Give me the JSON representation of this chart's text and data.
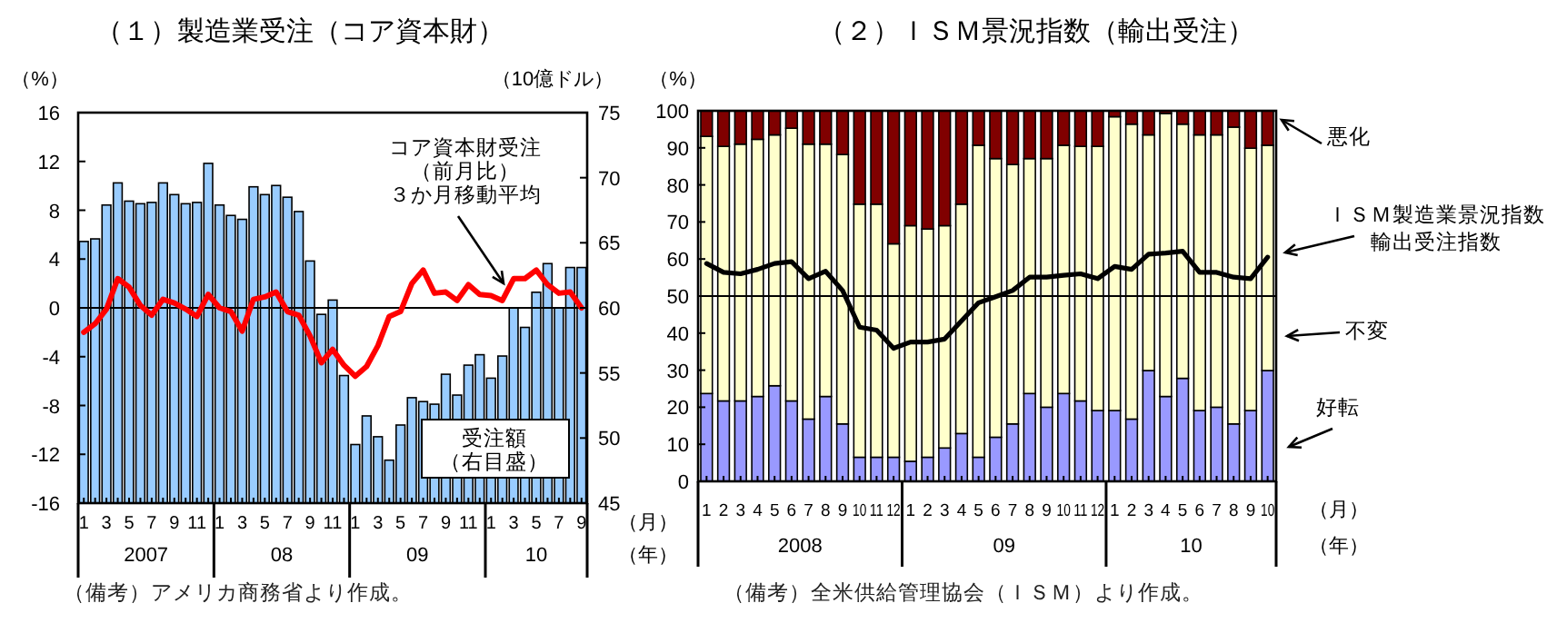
{
  "chart_data": [
    {
      "type": "bar",
      "title": "（１）製造業受注（コア資本財）",
      "ylabel": "（%）",
      "y2label": "（10億ドル）",
      "xlabel": "（月）（年）",
      "x": [
        "2007-01",
        "2007-02",
        "2007-03",
        "2007-04",
        "2007-05",
        "2007-06",
        "2007-07",
        "2007-08",
        "2007-09",
        "2007-10",
        "2007-11",
        "2007-12",
        "2008-01",
        "2008-02",
        "2008-03",
        "2008-04",
        "2008-05",
        "2008-06",
        "2008-07",
        "2008-08",
        "2008-09",
        "2008-10",
        "2008-11",
        "2008-12",
        "2009-01",
        "2009-02",
        "2009-03",
        "2009-04",
        "2009-05",
        "2009-06",
        "2009-07",
        "2009-08",
        "2009-09",
        "2009-10",
        "2009-11",
        "2009-12",
        "2010-01",
        "2010-02",
        "2010-03",
        "2010-04",
        "2010-05",
        "2010-06",
        "2010-07",
        "2010-08",
        "2010-09"
      ],
      "xlim": [
        "2006-12-16",
        "2010-09-16"
      ],
      "xticks": [
        {
          "value": "2007-01",
          "label": "1"
        },
        {
          "value": "2007-02",
          "label": null
        },
        {
          "value": "2007-03",
          "label": "3"
        },
        {
          "value": "2007-04",
          "label": null
        },
        {
          "value": "2007-05",
          "label": "5"
        },
        {
          "value": "2007-06",
          "label": null
        },
        {
          "value": "2007-07",
          "label": "7"
        },
        {
          "value": "2007-08",
          "label": null
        },
        {
          "value": "2007-09",
          "label": "9"
        },
        {
          "value": "2007-10",
          "label": null
        },
        {
          "value": "2007-11",
          "label": "11"
        },
        {
          "value": "2007-12",
          "label": null
        },
        {
          "value": "2008-01",
          "label": "1"
        },
        {
          "value": "2008-02",
          "label": null
        },
        {
          "value": "2008-03",
          "label": "3"
        },
        {
          "value": "2008-04",
          "label": null
        },
        {
          "value": "2008-05",
          "label": "5"
        },
        {
          "value": "2008-06",
          "label": null
        },
        {
          "value": "2008-07",
          "label": "7"
        },
        {
          "value": "2008-08",
          "label": null
        },
        {
          "value": "2008-09",
          "label": "9"
        },
        {
          "value": "2008-10",
          "label": null
        },
        {
          "value": "2008-11",
          "label": "11"
        },
        {
          "value": "2008-12",
          "label": null
        },
        {
          "value": "2009-01",
          "label": "1"
        },
        {
          "value": "2009-02",
          "label": null
        },
        {
          "value": "2009-03",
          "label": "3"
        },
        {
          "value": "2009-04",
          "label": null
        },
        {
          "value": "2009-05",
          "label": "5"
        },
        {
          "value": "2009-06",
          "label": null
        },
        {
          "value": "2009-07",
          "label": "7"
        },
        {
          "value": "2009-08",
          "label": null
        },
        {
          "value": "2009-09",
          "label": "9"
        },
        {
          "value": "2009-10",
          "label": null
        },
        {
          "value": "2009-11",
          "label": "11"
        },
        {
          "value": "2009-12",
          "label": null
        },
        {
          "value": "2010-01",
          "label": "1"
        },
        {
          "value": "2010-02",
          "label": null
        },
        {
          "value": "2010-03",
          "label": "3"
        },
        {
          "value": "2010-04",
          "label": null
        },
        {
          "value": "2010-05",
          "label": "5"
        },
        {
          "value": "2010-06",
          "label": null
        },
        {
          "value": "2010-07",
          "label": "7"
        },
        {
          "value": "2010-08",
          "label": null
        },
        {
          "value": "2010-09",
          "label": "9"
        }
      ],
      "ylim": [
        -16,
        16
      ],
      "yticks": [
        -16,
        -12,
        -8,
        -4,
        0,
        4,
        8,
        12,
        16
      ],
      "y2lim": [
        45,
        75
      ],
      "y2ticks": [
        45,
        50,
        55,
        60,
        65,
        70,
        75
      ],
      "ref_lines": [
        {
          "axis": "y",
          "value": 0,
          "color": "#000000"
        }
      ],
      "series": [
        {
          "name": "受注額（右目盛）",
          "axis": "y2",
          "color": "#99ccff",
          "values": [
            65.1,
            65.3,
            67.9,
            69.6,
            68.2,
            68.0,
            68.1,
            69.6,
            68.7,
            68.0,
            68.1,
            71.1,
            67.9,
            67.1,
            66.8,
            69.3,
            68.7,
            69.4,
            68.5,
            67.4,
            63.6,
            59.5,
            60.6,
            54.8,
            49.5,
            51.7,
            50.1,
            48.3,
            51.0,
            53.1,
            52.8,
            52.6,
            54.9,
            53.3,
            55.6,
            56.4,
            54.6,
            56.3,
            60.0,
            58.5,
            61.2,
            63.4,
            60.0,
            63.1,
            63.1
          ]
        },
        {
          "name": "コア資本財受注（前月比）３か月移動平均",
          "type": "line",
          "color": "#ff0000",
          "values": [
            -2.0,
            -1.3,
            -0.1,
            2.4,
            1.7,
            0.2,
            -0.6,
            0.7,
            0.4,
            -0.1,
            -0.7,
            1.1,
            0.0,
            -0.3,
            -1.9,
            0.7,
            0.9,
            1.3,
            -0.3,
            -0.6,
            -2.3,
            -4.5,
            -3.4,
            -4.7,
            -5.6,
            -4.8,
            -3.1,
            -0.7,
            -0.3,
            2.0,
            3.1,
            1.2,
            1.3,
            0.6,
            1.9,
            1.1,
            1.0,
            0.6,
            2.4,
            2.4,
            3.1,
            1.9,
            1.2,
            1.3,
            0.0
          ]
        }
      ],
      "annotations": [
        "2007",
        "08",
        "09",
        "10",
        "（備考）アメリカ商務省より作成。"
      ]
    },
    {
      "type": "bar",
      "stacked": true,
      "title": "（２）ＩＳＭ景況指数（輸出受注）",
      "ylabel": "（%）",
      "xlabel": "（月）（年）",
      "legend": "right",
      "x": [
        "2008-01",
        "2008-02",
        "2008-03",
        "2008-04",
        "2008-05",
        "2008-06",
        "2008-07",
        "2008-08",
        "2008-09",
        "2008-10",
        "2008-11",
        "2008-12",
        "2009-01",
        "2009-02",
        "2009-03",
        "2009-04",
        "2009-05",
        "2009-06",
        "2009-07",
        "2009-08",
        "2009-09",
        "2009-10",
        "2009-11",
        "2009-12",
        "2010-01",
        "2010-02",
        "2010-03",
        "2010-04",
        "2010-05",
        "2010-06",
        "2010-07",
        "2010-08",
        "2010-09",
        "2010-10"
      ],
      "xlim": [
        "2007-12-16",
        "2010-10-16"
      ],
      "xticks": [
        {
          "value": "2008-01",
          "label": "1"
        },
        {
          "value": "2008-02",
          "label": "2"
        },
        {
          "value": "2008-03",
          "label": "3"
        },
        {
          "value": "2008-04",
          "label": "4"
        },
        {
          "value": "2008-05",
          "label": "5"
        },
        {
          "value": "2008-06",
          "label": "6"
        },
        {
          "value": "2008-07",
          "label": "7"
        },
        {
          "value": "2008-08",
          "label": "8"
        },
        {
          "value": "2008-09",
          "label": "9"
        },
        {
          "value": "2008-10",
          "label": "10"
        },
        {
          "value": "2008-11",
          "label": "11"
        },
        {
          "value": "2008-12",
          "label": "12"
        },
        {
          "value": "2009-01",
          "label": "1"
        },
        {
          "value": "2009-02",
          "label": "2"
        },
        {
          "value": "2009-03",
          "label": "3"
        },
        {
          "value": "2009-04",
          "label": "4"
        },
        {
          "value": "2009-05",
          "label": "5"
        },
        {
          "value": "2009-06",
          "label": "6"
        },
        {
          "value": "2009-07",
          "label": "7"
        },
        {
          "value": "2009-08",
          "label": "8"
        },
        {
          "value": "2009-09",
          "label": "9"
        },
        {
          "value": "2009-10",
          "label": "10"
        },
        {
          "value": "2009-11",
          "label": "11"
        },
        {
          "value": "2009-12",
          "label": "12"
        },
        {
          "value": "2010-01",
          "label": "1"
        },
        {
          "value": "2010-02",
          "label": "2"
        },
        {
          "value": "2010-03",
          "label": "3"
        },
        {
          "value": "2010-04",
          "label": "4"
        },
        {
          "value": "2010-05",
          "label": "5"
        },
        {
          "value": "2010-06",
          "label": "6"
        },
        {
          "value": "2010-07",
          "label": "7"
        },
        {
          "value": "2010-08",
          "label": "8"
        },
        {
          "value": "2010-09",
          "label": "9"
        },
        {
          "value": "2010-10",
          "label": "10"
        }
      ],
      "ylim": [
        0,
        100
      ],
      "yticks": [
        0,
        10,
        20,
        30,
        40,
        50,
        60,
        70,
        80,
        90,
        100
      ],
      "ref_lines": [
        {
          "axis": "y",
          "value": 50,
          "color": "#000000"
        }
      ],
      "series": [
        {
          "name": "好転",
          "color": "#9999ff",
          "values": [
            23.7,
            21.7,
            21.7,
            22.9,
            25.8,
            21.7,
            16.8,
            22.9,
            15.5,
            6.5,
            6.5,
            6.5,
            5.4,
            6.5,
            9.0,
            12.9,
            6.5,
            11.9,
            15.5,
            23.7,
            20.0,
            23.7,
            21.7,
            19.1,
            19.1,
            16.8,
            29.9,
            22.9,
            27.8,
            19.1,
            20.0,
            15.5,
            19.1,
            29.9
          ]
        },
        {
          "name": "不変",
          "color": "#ffffcc",
          "values": [
            69.4,
            68.7,
            69.3,
            69.4,
            67.7,
            73.6,
            74.2,
            68.1,
            72.7,
            68.3,
            68.3,
            57.6,
            63.6,
            61.6,
            60.0,
            61.9,
            84.2,
            75.2,
            70.0,
            63.4,
            67.1,
            67.0,
            68.7,
            71.3,
            79.3,
            79.6,
            63.6,
            76.4,
            68.6,
            74.4,
            73.5,
            80.1,
            70.8,
            60.8
          ]
        },
        {
          "name": "悪化",
          "color": "#800000",
          "values": [
            6.9,
            9.6,
            9.0,
            7.7,
            6.5,
            4.7,
            9.0,
            9.0,
            11.8,
            25.2,
            25.2,
            35.9,
            31.0,
            31.9,
            31.0,
            25.2,
            9.3,
            12.9,
            14.5,
            12.9,
            12.9,
            9.3,
            9.6,
            9.6,
            1.6,
            3.6,
            6.5,
            0.7,
            3.6,
            6.5,
            6.5,
            4.4,
            10.1,
            9.3
          ]
        },
        {
          "name": "ＩＳＭ製造業景況指数輸出受注指数",
          "type": "line",
          "color": "#000000",
          "values": [
            58.8,
            56.4,
            56.0,
            57.2,
            58.8,
            59.3,
            54.7,
            56.7,
            51.5,
            41.6,
            40.8,
            35.9,
            37.6,
            37.6,
            38.4,
            43.3,
            48.2,
            49.8,
            51.5,
            55.1,
            55.1,
            55.6,
            56.0,
            54.7,
            58.0,
            57.2,
            61.3,
            61.6,
            62.1,
            56.4,
            56.4,
            55.1,
            54.7,
            60.5
          ]
        }
      ],
      "annotations": [
        "2008",
        "09",
        "10",
        "（備考）全米供給管理協会（ＩＳＭ）より作成。"
      ]
    }
  ]
}
